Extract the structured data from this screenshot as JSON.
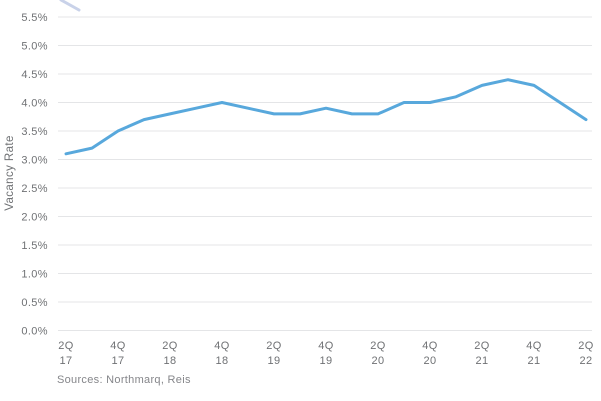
{
  "chart_data": {
    "type": "line",
    "title": "",
    "xlabel": "",
    "ylabel": "Vacancy Rate",
    "categories": [
      "2Q 17",
      "3Q 17",
      "4Q 17",
      "1Q 18",
      "2Q 18",
      "3Q 18",
      "4Q 18",
      "1Q 19",
      "2Q 19",
      "3Q 19",
      "4Q 19",
      "1Q 20",
      "2Q 20",
      "3Q 20",
      "4Q 20",
      "1Q 21",
      "2Q 21",
      "3Q 21",
      "4Q 21",
      "1Q 22",
      "2Q 22"
    ],
    "series": [
      {
        "name": "Vacancy Rate",
        "values": [
          3.1,
          3.2,
          3.5,
          3.7,
          3.8,
          3.9,
          4.0,
          3.9,
          3.8,
          3.8,
          3.9,
          3.8,
          3.8,
          4.0,
          4.0,
          4.1,
          4.3,
          4.4,
          4.3,
          4.0,
          3.7
        ]
      }
    ],
    "unit": "%",
    "ylim": [
      0,
      5.5
    ],
    "y_tick_step": 0.5,
    "y_ticks": [
      "0.0%",
      "0.5%",
      "1.0%",
      "1.5%",
      "2.0%",
      "2.5%",
      "3.0%",
      "3.5%",
      "4.0%",
      "4.5%",
      "5.0%",
      "5.5%"
    ],
    "x_tick_labels": [
      "2Q 17",
      "4Q 17",
      "2Q 18",
      "4Q 18",
      "2Q 19",
      "4Q 19",
      "2Q 20",
      "4Q 20",
      "2Q 21",
      "4Q 21",
      "2Q 22"
    ],
    "grid": "horizontal",
    "legend": "none",
    "source": "Sources: Northmarq, Reis",
    "colors": {
      "line": "#58A8DC",
      "grid": "#E4E5E7",
      "text": "#6F7174",
      "source_text": "#85868A",
      "artifact": "#C9D2E9",
      "background": "#FFFFFF"
    }
  }
}
